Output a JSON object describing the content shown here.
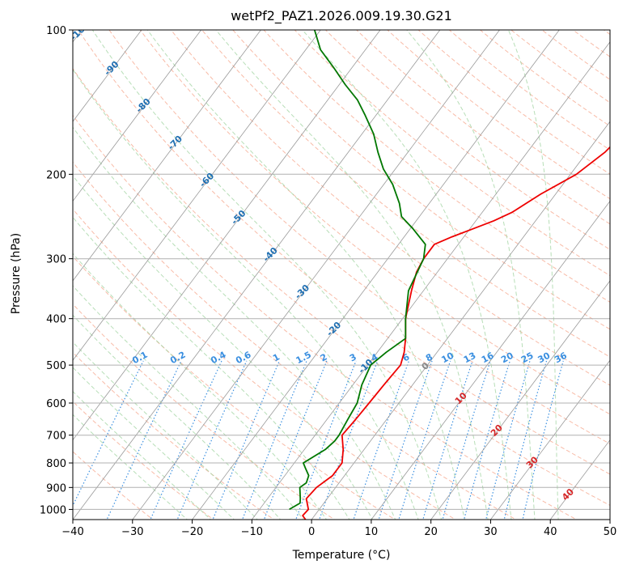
{
  "chart_data": {
    "type": "line",
    "title": "wetPf2_PAZ1.2026.009.19.30.G21",
    "xlabel": "Temperature (°C)",
    "ylabel": "Pressure (hPa)",
    "xlim": [
      -40,
      50
    ],
    "ylim": [
      1050,
      100
    ],
    "y_scale": "log",
    "grid": true,
    "x_ticks": [
      -40,
      -30,
      -20,
      -10,
      0,
      10,
      20,
      30,
      40,
      50
    ],
    "x_tick_labels": [
      "−40",
      "−30",
      "−20",
      "−10",
      "0",
      "10",
      "20",
      "30",
      "40",
      "50"
    ],
    "y_ticks": [
      1000,
      900,
      800,
      700,
      600,
      500,
      400,
      300,
      200,
      100
    ],
    "y_tick_labels": [
      "1000",
      "900",
      "800",
      "700",
      "600",
      "500",
      "400",
      "300",
      "200",
      "100"
    ],
    "skew_isotherms": [
      -130,
      -120,
      -110,
      -100,
      -90,
      -80,
      -70,
      -60,
      -50,
      -40,
      -30,
      -20,
      -10,
      0,
      10,
      20,
      30,
      40,
      50
    ],
    "isotherm_labels": [
      {
        "t": -100,
        "label": "-100"
      },
      {
        "t": -90,
        "label": "-90"
      },
      {
        "t": -80,
        "label": "-80"
      },
      {
        "t": -70,
        "label": "-70"
      },
      {
        "t": -60,
        "label": "-60"
      },
      {
        "t": -50,
        "label": "-50"
      },
      {
        "t": -40,
        "label": "-40"
      },
      {
        "t": -30,
        "label": "-30"
      },
      {
        "t": -20,
        "label": "-20"
      },
      {
        "t": -10,
        "label": "-10"
      },
      {
        "t": 0,
        "label": "0"
      },
      {
        "t": 10,
        "label": "10"
      },
      {
        "t": 20,
        "label": "20"
      },
      {
        "t": 30,
        "label": "30"
      },
      {
        "t": 40,
        "label": "40"
      }
    ],
    "mixing_ratio_labels": [
      "0.1",
      "0.2",
      "0.4",
      "0.6",
      "1",
      "1.5",
      "2",
      "3",
      "4",
      "6",
      "8",
      "10",
      "13",
      "16",
      "20",
      "25",
      "30",
      "36"
    ],
    "mixing_ratio_values": [
      0.1,
      0.2,
      0.4,
      0.6,
      1,
      1.5,
      2,
      3,
      4,
      6,
      8,
      10,
      13,
      16,
      20,
      25,
      30,
      36
    ],
    "series": [
      {
        "name": "Temperature",
        "color": "#ee0000",
        "points": [
          [
            1050,
            -1.0
          ],
          [
            1030,
            -2.0
          ],
          [
            1000,
            -1.8
          ],
          [
            950,
            -3.5
          ],
          [
            900,
            -3.2
          ],
          [
            850,
            -2.0
          ],
          [
            800,
            -2.0
          ],
          [
            750,
            -3.5
          ],
          [
            700,
            -5.5
          ],
          [
            650,
            -5.2
          ],
          [
            600,
            -5.0
          ],
          [
            550,
            -4.8
          ],
          [
            500,
            -4.5
          ],
          [
            470,
            -5.5
          ],
          [
            440,
            -7.0
          ],
          [
            400,
            -9.5
          ],
          [
            350,
            -12.0
          ],
          [
            320,
            -13.5
          ],
          [
            300,
            -14.0
          ],
          [
            280,
            -14.0
          ],
          [
            270,
            -12.0
          ],
          [
            260,
            -9.5
          ],
          [
            250,
            -7.0
          ],
          [
            240,
            -5.0
          ],
          [
            220,
            -2.5
          ],
          [
            200,
            1.0
          ],
          [
            180,
            3.0
          ],
          [
            160,
            4.0
          ],
          [
            140,
            6.0
          ],
          [
            120,
            9.0
          ],
          [
            110,
            10.5
          ],
          [
            100,
            13.0
          ]
        ]
      },
      {
        "name": "Dewpoint",
        "color": "#007700",
        "points": [
          [
            1000,
            -5.0
          ],
          [
            970,
            -4.0
          ],
          [
            950,
            -4.5
          ],
          [
            900,
            -6.0
          ],
          [
            880,
            -5.5
          ],
          [
            850,
            -6.0
          ],
          [
            820,
            -7.5
          ],
          [
            800,
            -8.5
          ],
          [
            750,
            -6.5
          ],
          [
            720,
            -6.0
          ],
          [
            700,
            -6.0
          ],
          [
            650,
            -6.5
          ],
          [
            600,
            -7.0
          ],
          [
            550,
            -8.5
          ],
          [
            500,
            -9.5
          ],
          [
            470,
            -8.5
          ],
          [
            440,
            -7.0
          ],
          [
            400,
            -9.5
          ],
          [
            350,
            -12.5
          ],
          [
            300,
            -14.0
          ],
          [
            280,
            -15.5
          ],
          [
            260,
            -19.5
          ],
          [
            245,
            -23.0
          ],
          [
            230,
            -25.0
          ],
          [
            210,
            -28.5
          ],
          [
            195,
            -32.0
          ],
          [
            180,
            -35.0
          ],
          [
            165,
            -38.0
          ],
          [
            150,
            -42.0
          ],
          [
            140,
            -45.0
          ],
          [
            130,
            -49.0
          ],
          [
            120,
            -53.0
          ],
          [
            110,
            -57.5
          ],
          [
            100,
            -61.0
          ]
        ]
      }
    ]
  }
}
